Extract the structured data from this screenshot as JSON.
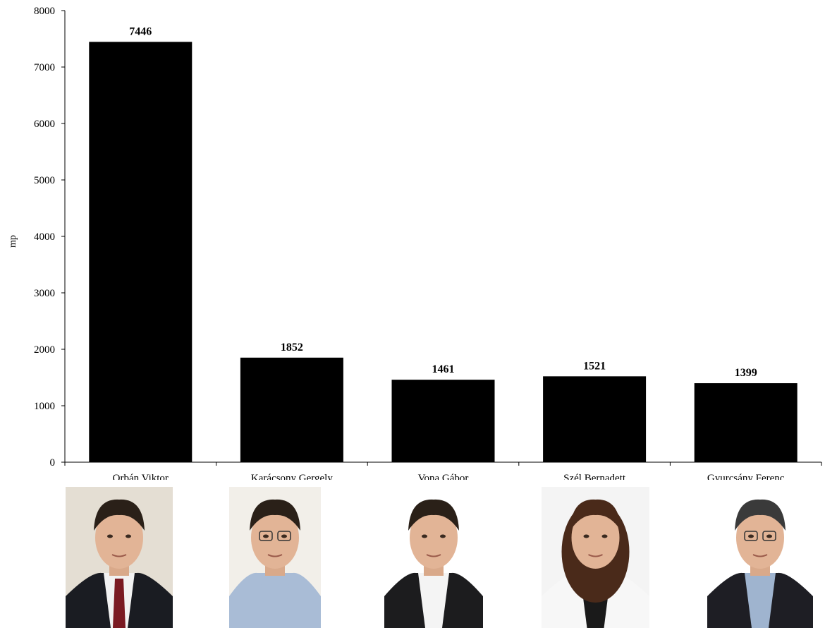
{
  "chart_data": {
    "type": "bar",
    "categories": [
      "Orbán Viktor",
      "Karácsony Gergely",
      "Vona Gábor",
      "Szél Bernadett",
      "Gyurcsány Ferenc"
    ],
    "values": [
      7446,
      1852,
      1461,
      1521,
      1399
    ],
    "value_labels": [
      "7446",
      "1852",
      "1461",
      "1521",
      "1399"
    ],
    "ylabel": "mp",
    "ylim": [
      0,
      8000
    ],
    "yticks": [
      "0",
      "1000",
      "2000",
      "3000",
      "4000",
      "5000",
      "6000",
      "7000",
      "8000"
    ],
    "grid": false,
    "bar_color": "#000000"
  },
  "portraits": [
    {
      "icon": "portrait-photo",
      "background": "#e4ded3",
      "suit": "#1a1c22",
      "shirt": "#f2f2f2",
      "tie": "#7a1a22"
    },
    {
      "icon": "portrait-photo",
      "background": "#f2efe9",
      "suit": "#a9bcd6",
      "shirt": "#a9bcd6",
      "tie": ""
    },
    {
      "icon": "portrait-photo",
      "background": "#ffffff",
      "suit": "#1c1c1e",
      "shirt": "#f4f4f4",
      "tie": ""
    },
    {
      "icon": "portrait-photo",
      "background": "#f4f4f4",
      "suit": "#f7f7f7",
      "shirt": "#1a1a1a",
      "tie": ""
    },
    {
      "icon": "portrait-photo",
      "background": "#ffffff",
      "suit": "#1e1e24",
      "shirt": "#9fb4cf",
      "tie": ""
    }
  ]
}
